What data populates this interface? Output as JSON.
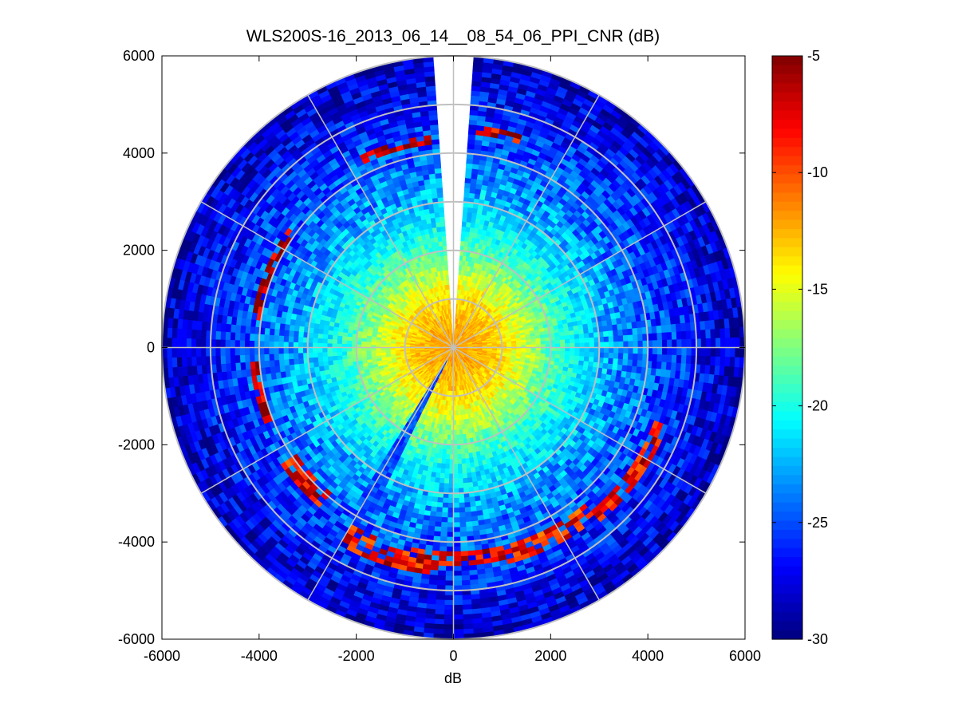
{
  "chart_data": {
    "type": "heatmap",
    "subtype": "polar-ppi-scan",
    "title": "WLS200S-16_2013_06_14__08_54_06_PPI_CNR (dB)",
    "xlabel": "dB",
    "ylabel": "",
    "xlim": [
      -6000,
      6000
    ],
    "ylim": [
      -6000,
      6000
    ],
    "xticks": [
      -6000,
      -4000,
      -2000,
      0,
      2000,
      4000,
      6000
    ],
    "yticks": [
      -6000,
      -4000,
      -2000,
      0,
      2000,
      4000,
      6000
    ],
    "xtick_labels": [
      "-6000",
      "-4000",
      "-2000",
      "0",
      "2000",
      "4000",
      "6000"
    ],
    "ytick_labels": [
      "-6000",
      "-4000",
      "-2000",
      "0",
      "2000",
      "4000",
      "6000"
    ],
    "polar_grid": {
      "ring_radii": [
        1000,
        2000,
        3000,
        4000,
        5000,
        6000
      ],
      "spoke_angles_deg": [
        0,
        30,
        60,
        90,
        120,
        150,
        180,
        210,
        240,
        270,
        300,
        330
      ]
    },
    "max_range": 6000,
    "range_gate": 100,
    "azimuth_step_deg": 2,
    "missing_sector_deg": [
      -4,
      4
    ],
    "colorbar": {
      "colormap": "jet",
      "range": [
        -30,
        -5
      ],
      "ticks": [
        -5,
        -10,
        -15,
        -20,
        -25,
        -30
      ],
      "tick_labels": [
        "-5",
        "-10",
        "-15",
        "-20",
        "-25",
        "-30"
      ]
    },
    "cnr_profile": {
      "description": "CNR vs range (m): high near origin, decreasing outward",
      "range": [
        0,
        500,
        1000,
        1500,
        2000,
        2500,
        3000,
        3500,
        4000,
        4500,
        5000,
        5500,
        6000
      ],
      "cnr_db": [
        -12,
        -12.5,
        -13.5,
        -16,
        -18.5,
        -20.5,
        -22,
        -23.5,
        -24.5,
        -25.5,
        -26.5,
        -27.5,
        -28.5
      ]
    },
    "hard_targets": [
      {
        "azimuth_range_deg": [
          -25,
          -7
        ],
        "range": [
          4200,
          4400
        ],
        "cnr_db": -6
      },
      {
        "azimuth_range_deg": [
          7,
          18
        ],
        "range": [
          4400,
          4600
        ],
        "cnr_db": -7
      },
      {
        "azimuth_range_deg": [
          -82,
          -55
        ],
        "range": [
          4000,
          4200
        ],
        "cnr_db": -6
      },
      {
        "azimuth_range_deg": [
          -112,
          -95
        ],
        "range": [
          4000,
          4200
        ],
        "cnr_db": -6
      },
      {
        "azimuth_range_deg": [
          110,
          140
        ],
        "range": [
          4400,
          4700
        ],
        "cnr_db": -8
      },
      {
        "azimuth_range_deg": [
          140,
          165
        ],
        "range": [
          4200,
          4600
        ],
        "cnr_db": -9
      },
      {
        "azimuth_range_deg": [
          165,
          185
        ],
        "range": [
          4200,
          4500
        ],
        "cnr_db": -7
      },
      {
        "azimuth_range_deg": [
          185,
          210
        ],
        "range": [
          4200,
          4700
        ],
        "cnr_db": -8
      },
      {
        "azimuth_range_deg": [
          220,
          235
        ],
        "range": [
          3900,
          4300
        ],
        "cnr_db": -8
      }
    ],
    "low_signal_beam": {
      "azimuth_range_deg": [
        206,
        212
      ],
      "cnr_db": -25
    }
  }
}
